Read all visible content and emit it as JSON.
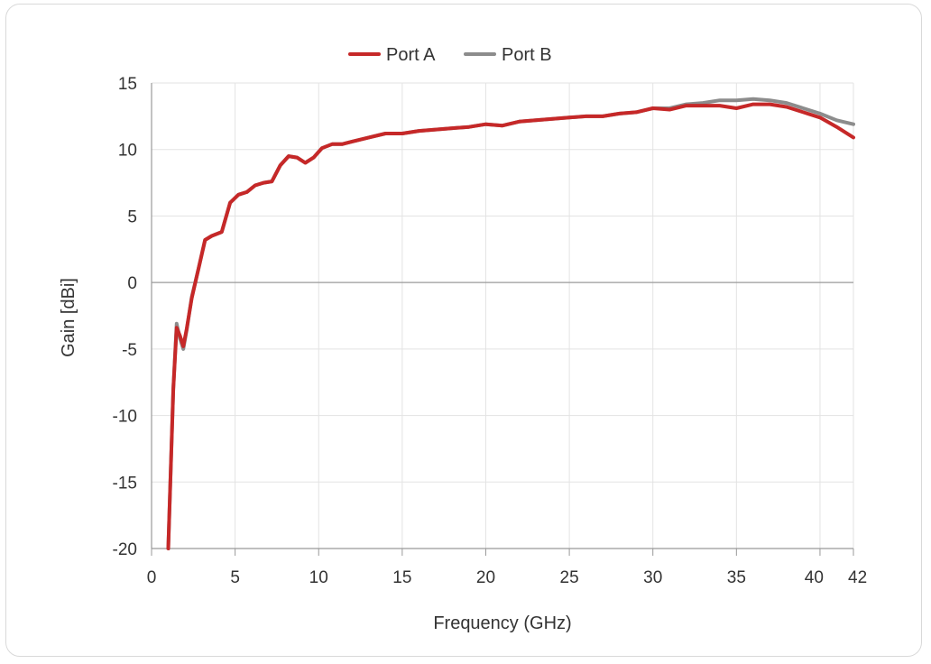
{
  "chart_data": {
    "type": "line",
    "xlabel": "Frequency (GHz)",
    "ylabel": "Gain [dBi]",
    "xlim": [
      0,
      42
    ],
    "ylim": [
      -20,
      15
    ],
    "xticks": [
      0,
      5,
      10,
      15,
      20,
      25,
      30,
      35,
      40,
      42
    ],
    "yticks": [
      15,
      10,
      5,
      0,
      -5,
      -10,
      -15,
      -20
    ],
    "grid": true,
    "legend_position": "top-center",
    "series": [
      {
        "name": "Port A",
        "color": "#c62828",
        "x": [
          1.0,
          1.3,
          1.5,
          1.7,
          1.9,
          2.1,
          2.4,
          2.8,
          3.2,
          3.6,
          4.2,
          4.7,
          5.2,
          5.7,
          6.2,
          6.7,
          7.2,
          7.7,
          8.2,
          8.7,
          9.2,
          9.7,
          10.2,
          10.8,
          11.4,
          12,
          13,
          14,
          15,
          16,
          17,
          18,
          19,
          20,
          21,
          22,
          23,
          24,
          25,
          26,
          27,
          28,
          29,
          30,
          31,
          32,
          33,
          34,
          35,
          36,
          37,
          38,
          39,
          40,
          41,
          42
        ],
        "y": [
          -20,
          -8,
          -3.4,
          -4.0,
          -4.8,
          -3.5,
          -1.2,
          1.0,
          3.2,
          3.5,
          3.8,
          6.0,
          6.6,
          6.8,
          7.3,
          7.5,
          7.6,
          8.8,
          9.5,
          9.4,
          9.0,
          9.4,
          10.1,
          10.4,
          10.4,
          10.6,
          10.9,
          11.2,
          11.2,
          11.4,
          11.5,
          11.6,
          11.7,
          11.9,
          11.8,
          12.1,
          12.2,
          12.3,
          12.4,
          12.5,
          12.5,
          12.7,
          12.8,
          13.1,
          13.0,
          13.3,
          13.3,
          13.3,
          13.1,
          13.4,
          13.4,
          13.2,
          12.8,
          12.4,
          11.7,
          10.9
        ]
      },
      {
        "name": "Port B",
        "color": "#8c8c8c",
        "x": [
          1.0,
          1.3,
          1.5,
          1.7,
          1.9,
          2.1,
          2.4,
          2.8,
          3.2,
          3.6,
          4.2,
          4.7,
          5.2,
          5.7,
          6.2,
          6.7,
          7.2,
          7.7,
          8.2,
          8.7,
          9.2,
          9.7,
          10.2,
          10.8,
          11.4,
          12,
          13,
          14,
          15,
          16,
          17,
          18,
          19,
          20,
          21,
          22,
          23,
          24,
          25,
          26,
          27,
          28,
          29,
          30,
          31,
          32,
          33,
          34,
          35,
          36,
          37,
          38,
          39,
          40,
          41,
          42
        ],
        "y": [
          -20,
          -8,
          -3.1,
          -4.2,
          -5.0,
          -3.6,
          -1.1,
          1.0,
          3.2,
          3.5,
          3.8,
          6.0,
          6.6,
          6.8,
          7.3,
          7.5,
          7.6,
          8.8,
          9.5,
          9.4,
          9.0,
          9.4,
          10.1,
          10.4,
          10.4,
          10.6,
          10.9,
          11.2,
          11.2,
          11.4,
          11.5,
          11.6,
          11.7,
          11.9,
          11.8,
          12.1,
          12.2,
          12.3,
          12.4,
          12.5,
          12.5,
          12.7,
          12.8,
          13.1,
          13.1,
          13.4,
          13.5,
          13.7,
          13.7,
          13.8,
          13.7,
          13.5,
          13.1,
          12.7,
          12.2,
          11.9
        ]
      }
    ]
  }
}
